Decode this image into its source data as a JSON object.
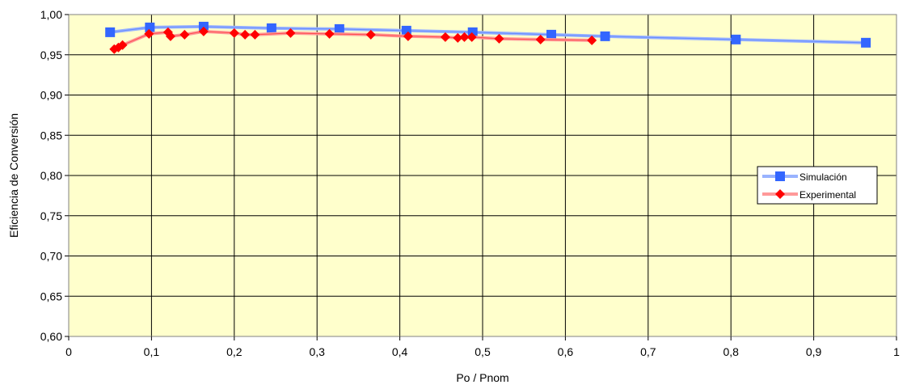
{
  "chart_data": {
    "type": "line",
    "xlabel": "Po / Pnom",
    "ylabel": "Eficiencia de Conversión",
    "xlim": [
      0,
      1
    ],
    "ylim": [
      0.6,
      1.0
    ],
    "x_ticks": [
      0,
      0.1,
      0.2,
      0.3,
      0.4,
      0.5,
      0.6,
      0.7,
      0.8,
      0.9,
      1
    ],
    "x_tick_labels": [
      "0",
      "0,1",
      "0,2",
      "0,3",
      "0,4",
      "0,5",
      "0,6",
      "0,7",
      "0,8",
      "0,9",
      "1"
    ],
    "y_ticks": [
      0.6,
      0.65,
      0.7,
      0.75,
      0.8,
      0.85,
      0.9,
      0.95,
      1.0
    ],
    "y_tick_labels": [
      "0,60",
      "0,65",
      "0,70",
      "0,75",
      "0,80",
      "0,85",
      "0,90",
      "0,95",
      "1,00"
    ],
    "grid": true,
    "plot_background": "#FFFFCC",
    "legend_position": "right",
    "series": [
      {
        "name": "Simulación",
        "color": "#3366FF",
        "line_color": "#99B3FF",
        "marker": "square",
        "x": [
          0.05,
          0.098,
          0.163,
          0.245,
          0.327,
          0.408,
          0.488,
          0.583,
          0.648,
          0.806,
          0.963
        ],
        "y": [
          0.978,
          0.984,
          0.985,
          0.983,
          0.982,
          0.98,
          0.978,
          0.975,
          0.973,
          0.969,
          0.965
        ]
      },
      {
        "name": "Experimental",
        "color": "#FF0000",
        "line_color": "#FF9999",
        "marker": "diamond",
        "x": [
          0.055,
          0.06,
          0.065,
          0.097,
          0.12,
          0.123,
          0.14,
          0.163,
          0.2,
          0.213,
          0.225,
          0.268,
          0.315,
          0.365,
          0.41,
          0.455,
          0.47,
          0.478,
          0.487,
          0.52,
          0.57,
          0.632
        ],
        "y": [
          0.957,
          0.959,
          0.962,
          0.976,
          0.978,
          0.973,
          0.975,
          0.979,
          0.977,
          0.975,
          0.975,
          0.977,
          0.976,
          0.975,
          0.973,
          0.972,
          0.971,
          0.972,
          0.972,
          0.97,
          0.969,
          0.968
        ]
      }
    ]
  }
}
